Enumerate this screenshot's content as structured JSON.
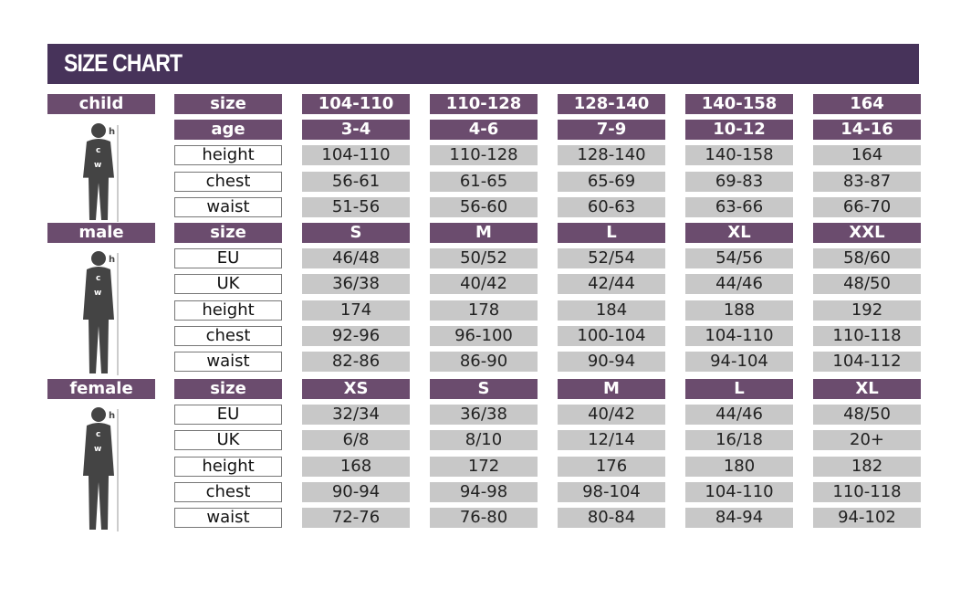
{
  "title": "SIZE CHART",
  "sections": [
    {
      "name": "child",
      "rows": [
        {
          "label": "size",
          "header": true,
          "values": [
            "104-110",
            "110-128",
            "128-140",
            "140-158",
            "164"
          ]
        },
        {
          "label": "age",
          "header": true,
          "values": [
            "3-4",
            "4-6",
            "7-9",
            "10-12",
            "14-16"
          ]
        },
        {
          "label": "height",
          "values": [
            "104-110",
            "110-128",
            "128-140",
            "140-158",
            "164"
          ]
        },
        {
          "label": "chest",
          "values": [
            "56-61",
            "61-65",
            "65-69",
            "69-83",
            "83-87"
          ]
        },
        {
          "label": "waist",
          "values": [
            "51-56",
            "56-60",
            "60-63",
            "63-66",
            "66-70"
          ]
        }
      ]
    },
    {
      "name": "male",
      "rows": [
        {
          "label": "size",
          "header": true,
          "values": [
            "S",
            "M",
            "L",
            "XL",
            "XXL"
          ]
        },
        {
          "label": "EU",
          "values": [
            "46/48",
            "50/52",
            "52/54",
            "54/56",
            "58/60"
          ]
        },
        {
          "label": "UK",
          "values": [
            "36/38",
            "40/42",
            "42/44",
            "44/46",
            "48/50"
          ]
        },
        {
          "label": "height",
          "values": [
            "174",
            "178",
            "184",
            "188",
            "192"
          ]
        },
        {
          "label": "chest",
          "values": [
            "92-96",
            "96-100",
            "100-104",
            "104-110",
            "110-118"
          ]
        },
        {
          "label": "waist",
          "values": [
            "82-86",
            "86-90",
            "90-94",
            "94-104",
            "104-112"
          ]
        }
      ]
    },
    {
      "name": "female",
      "rows": [
        {
          "label": "size",
          "header": true,
          "values": [
            "XS",
            "S",
            "M",
            "L",
            "XL"
          ]
        },
        {
          "label": "EU",
          "values": [
            "32/34",
            "36/38",
            "40/42",
            "44/46",
            "48/50"
          ]
        },
        {
          "label": "UK",
          "values": [
            "6/8",
            "8/10",
            "12/14",
            "16/18",
            "20+"
          ]
        },
        {
          "label": "height",
          "values": [
            "168",
            "172",
            "176",
            "180",
            "182"
          ]
        },
        {
          "label": "chest",
          "values": [
            "90-94",
            "94-98",
            "98-104",
            "104-110",
            "110-118"
          ]
        },
        {
          "label": "waist",
          "values": [
            "72-76",
            "76-80",
            "80-84",
            "84-94",
            "94-102"
          ]
        }
      ]
    }
  ],
  "figure_labels": {
    "h": "h",
    "c": "c",
    "w": "w"
  },
  "colors": {
    "header": "#47335a",
    "purple": "#6b4c6e",
    "grey": "#c8c8c8"
  }
}
